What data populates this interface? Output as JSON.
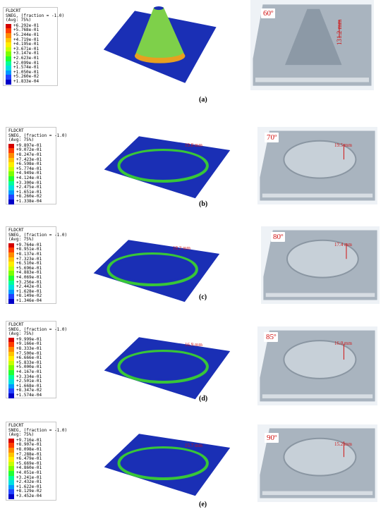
{
  "panels": [
    {
      "caption": "(a)",
      "angle": "60º",
      "sim_measure": "",
      "photo_measure": "131.2 mm",
      "legend": {
        "title": "FLDCRT",
        "subtitle": "SNEG, (fraction = -1.0)",
        "avg": "(Avg: 75%)",
        "values": [
          "+6.292e-01",
          "+5.768e-01",
          "+5.244e-01",
          "+4.719e-01",
          "+4.195e-01",
          "+3.671e-01",
          "+3.147e-01",
          "+2.623e-01",
          "+2.099e-01",
          "+1.574e-01",
          "+1.050e-01",
          "+5.260e-02",
          "+1.833e-04"
        ]
      }
    },
    {
      "caption": "(b)",
      "angle": "70º",
      "sim_measure": "19.8 mm",
      "photo_measure": "19.5 mm",
      "legend": {
        "title": "FLDCRT",
        "subtitle": "SNEG, (fraction = -1.0)",
        "avg": "(Avg: 75%)",
        "values": [
          "+9.897e-01",
          "+9.072e-01",
          "+8.247e-01",
          "+7.423e-01",
          "+6.598e-01",
          "+5.774e-01",
          "+4.949e-01",
          "+4.124e-01",
          "+3.300e-01",
          "+2.475e-01",
          "+1.651e-01",
          "+8.260e-02",
          "+1.338e-04"
        ]
      }
    },
    {
      "caption": "(c)",
      "angle": "80º",
      "sim_measure": "18.2 mm",
      "photo_measure": "17.4 mm",
      "legend": {
        "title": "FLDCRT",
        "subtitle": "SNEG, (fraction = -1.0)",
        "avg": "(Avg: 75%)",
        "values": [
          "+9.764e-01",
          "+8.951e-01",
          "+8.137e-01",
          "+7.323e-01",
          "+6.510e-01",
          "+5.696e-01",
          "+4.883e-01",
          "+4.069e-01",
          "+3.256e-01",
          "+2.442e-01",
          "+1.628e-01",
          "+8.149e-02",
          "+1.346e-04"
        ]
      }
    },
    {
      "caption": "(d)",
      "angle": "85º",
      "sim_measure": "16.9 mm",
      "photo_measure": "16.0 mm",
      "legend": {
        "title": "FLDCRT",
        "subtitle": "SNEG, (fraction = -1.0)",
        "avg": "(Avg: 75%)",
        "values": [
          "+9.999e-01",
          "+9.166e-01",
          "+8.333e-01",
          "+7.500e-01",
          "+6.666e-01",
          "+5.833e-01",
          "+5.000e-01",
          "+4.167e-01",
          "+3.334e-01",
          "+2.501e-01",
          "+1.668e-01",
          "+8.347e-02",
          "+1.574e-04"
        ]
      }
    },
    {
      "caption": "(e)",
      "angle": "90º",
      "sim_measure": "15.7 mm",
      "photo_measure": "15.2 mm",
      "legend": {
        "title": "FLDCRT",
        "subtitle": "SNEG, (fraction = -1.0)",
        "avg": "(Avg: 75%)",
        "values": [
          "+9.716e-01",
          "+8.907e-01",
          "+8.098e-01",
          "+7.288e-01",
          "+6.479e-01",
          "+5.669e-01",
          "+4.860e-01",
          "+4.051e-01",
          "+3.241e-01",
          "+2.432e-01",
          "+1.622e-01",
          "+8.129e-02",
          "+3.452e-04"
        ]
      }
    }
  ],
  "colors": {
    "scale": [
      "#d40000",
      "#ff3d00",
      "#ff8a00",
      "#ffc400",
      "#ffee00",
      "#c8ff00",
      "#7cff00",
      "#22ff33",
      "#00ff99",
      "#00e0e0",
      "#0099ff",
      "#2244ff",
      "#0000c8"
    ],
    "mesh_blue": "#1a2fb5",
    "mesh_green": "#38c638",
    "photo_sheet": "#a9b4bf",
    "label_red": "#d01010"
  }
}
